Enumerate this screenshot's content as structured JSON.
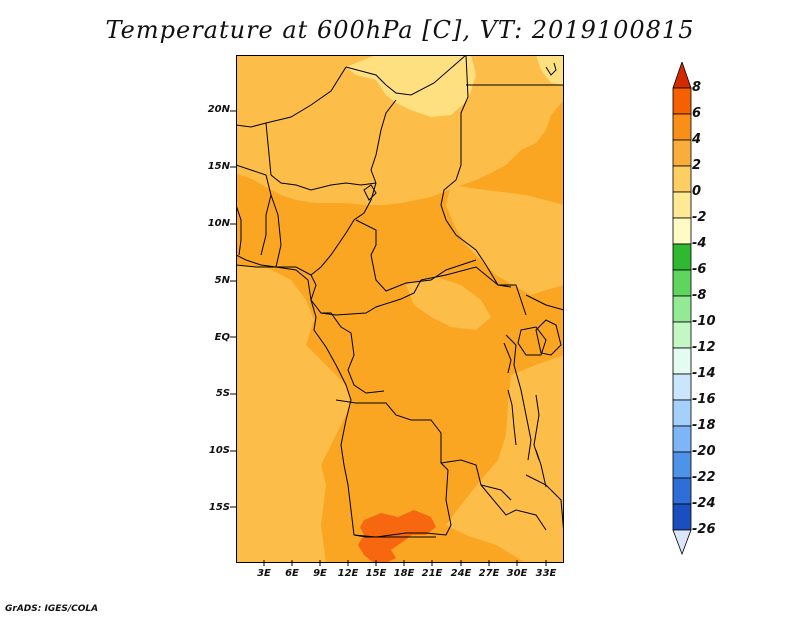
{
  "title": "Temperature at 600hPa [C], VT: 2019100815",
  "footer": "GrADS: IGES/COLA",
  "colors": {
    "bg_lowest": "#fdf7c9",
    "minus2_to_0": "#ffe080",
    "zero_to_2": "#fdbd49",
    "two_to_4": "#fba623",
    "four_to_6": "#f7670f",
    "border": "#000000"
  },
  "chart_data": {
    "type": "heatmap",
    "title": "Temperature at 600hPa [C], VT: 2019100815",
    "variable": "Temperature",
    "units": "C",
    "level": "600hPa",
    "valid_time": "2019100815",
    "lon_range": [
      0,
      35
    ],
    "lat_range": [
      -19,
      24.5
    ],
    "x_ticks": [
      "3E",
      "6E",
      "9E",
      "12E",
      "15E",
      "18E",
      "21E",
      "24E",
      "27E",
      "30E",
      "33E"
    ],
    "x_tick_values": [
      3,
      6,
      9,
      12,
      15,
      18,
      21,
      24,
      27,
      30,
      33
    ],
    "y_ticks": [
      "20N",
      "15N",
      "10N",
      "5N",
      "EQ",
      "5S",
      "10S",
      "15S"
    ],
    "y_tick_values": [
      20,
      15,
      10,
      5,
      0,
      -5,
      -10,
      -15
    ],
    "colorbar": {
      "levels": [
        8,
        6,
        4,
        2,
        0,
        -2,
        -4,
        -6,
        -8,
        -10,
        -12,
        -14,
        -16,
        -18,
        -20,
        -22,
        -24,
        -26
      ],
      "labels": [
        "8",
        "6",
        "4",
        "2",
        "0",
        "-2",
        "-4",
        "-6",
        "-8",
        "-10",
        "-12",
        "-14",
        "-16",
        "-18",
        "-20",
        "-22",
        "-24",
        "-26"
      ],
      "colors": [
        "#e82a00",
        "#f56100",
        "#f98f16",
        "#fbad3b",
        "#fdce63",
        "#ffe994",
        "#fffbc5",
        "#30b830",
        "#5fd45f",
        "#94ea94",
        "#c3f7c3",
        "#e3fbf1",
        "#c9e6fc",
        "#a4d0fb",
        "#7db6f6",
        "#4e93ea",
        "#2d6fd7",
        "#1b4fbf",
        "#0d2f8c",
        "#111866"
      ],
      "top_arrow_color": "#d42a00",
      "bottom_arrow_color": "#dce6fb"
    },
    "dominant_range": "2 to 4",
    "max_region": "southern Angola, 4 to 6"
  }
}
